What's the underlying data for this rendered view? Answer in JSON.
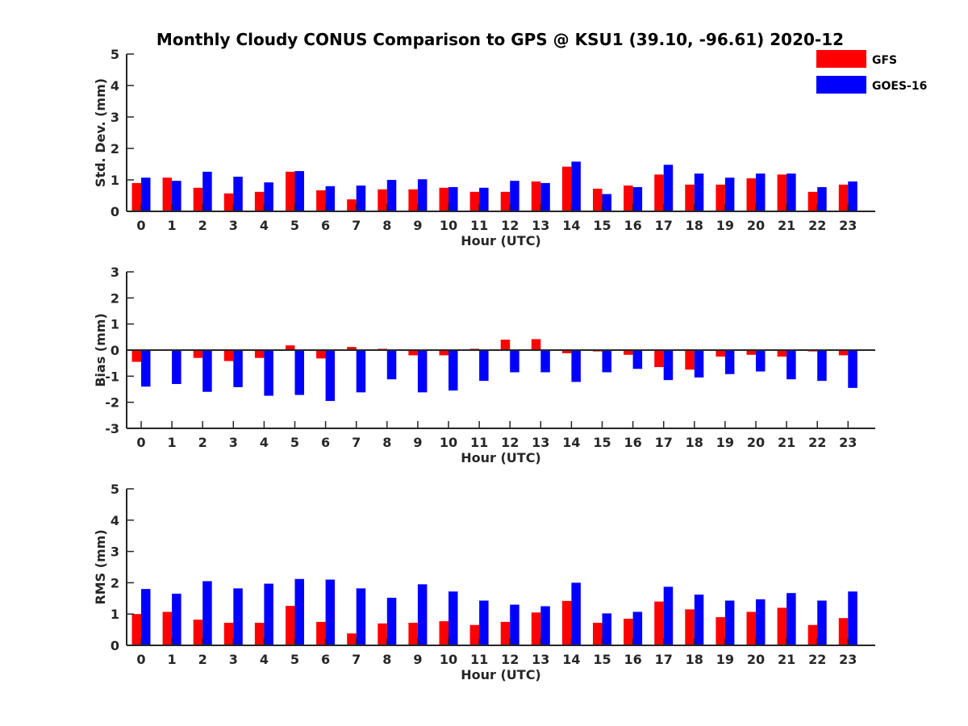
{
  "chart_data": {
    "type": "bar",
    "title": "Monthly Cloudy CONUS Comparison to GPS @ KSU1 (39.10, -96.61) 2020-12",
    "legend": {
      "placement": "top-right",
      "entries": [
        {
          "name": "GFS",
          "color": "#ff0000"
        },
        {
          "name": "GOES-16",
          "color": "#0000ff"
        }
      ]
    },
    "categories": [
      "0",
      "1",
      "2",
      "3",
      "4",
      "5",
      "6",
      "7",
      "8",
      "9",
      "10",
      "11",
      "12",
      "13",
      "14",
      "15",
      "16",
      "17",
      "18",
      "19",
      "20",
      "21",
      "22",
      "23"
    ],
    "panels": [
      {
        "id": "std",
        "ylabel": "Std. Dev. (mm)",
        "xlabel": "Hour (UTC)",
        "ylim": [
          0,
          5
        ],
        "yticks": [
          "0",
          "1",
          "2",
          "3",
          "4",
          "5"
        ],
        "zero_line": false,
        "series": [
          {
            "name": "GFS",
            "color": "#ff0000",
            "values": [
              0.9,
              1.07,
              0.75,
              0.57,
              0.62,
              1.26,
              0.67,
              0.38,
              0.7,
              0.7,
              0.75,
              0.62,
              0.62,
              0.95,
              1.42,
              0.72,
              0.82,
              1.17,
              0.85,
              0.85,
              1.05,
              1.17,
              0.62,
              0.85
            ]
          },
          {
            "name": "GOES-16",
            "color": "#0000ff",
            "values": [
              1.07,
              0.97,
              1.26,
              1.1,
              0.92,
              1.28,
              0.8,
              0.82,
              1.0,
              1.02,
              0.77,
              0.75,
              0.97,
              0.9,
              1.58,
              0.55,
              0.77,
              1.48,
              1.2,
              1.07,
              1.2,
              1.2,
              0.77,
              0.95
            ]
          }
        ]
      },
      {
        "id": "bias",
        "ylabel": "Bias (mm)",
        "xlabel": "Hour (UTC)",
        "ylim": [
          -3,
          3
        ],
        "yticks": [
          "-3",
          "-2",
          "-1",
          "0",
          "1",
          "2",
          "3"
        ],
        "zero_line": true,
        "series": [
          {
            "name": "GFS",
            "color": "#ff0000",
            "values": [
              -0.45,
              -0.02,
              -0.3,
              -0.42,
              -0.3,
              0.18,
              -0.32,
              0.12,
              0.05,
              -0.2,
              -0.2,
              0.05,
              0.4,
              0.42,
              -0.12,
              -0.05,
              -0.18,
              -0.65,
              -0.75,
              -0.25,
              -0.18,
              -0.25,
              -0.05,
              -0.2
            ]
          },
          {
            "name": "GOES-16",
            "color": "#0000ff",
            "values": [
              -1.4,
              -1.3,
              -1.6,
              -1.42,
              -1.75,
              -1.72,
              -1.95,
              -1.62,
              -1.12,
              -1.62,
              -1.55,
              -1.18,
              -0.85,
              -0.85,
              -1.22,
              -0.85,
              -0.72,
              -1.15,
              -1.05,
              -0.92,
              -0.82,
              -1.12,
              -1.18,
              -1.45
            ]
          }
        ]
      },
      {
        "id": "rms",
        "ylabel": "RMS (mm)",
        "xlabel": "Hour (UTC)",
        "ylim": [
          0,
          5
        ],
        "yticks": [
          "0",
          "1",
          "2",
          "3",
          "4",
          "5"
        ],
        "zero_line": false,
        "series": [
          {
            "name": "GFS",
            "color": "#ff0000",
            "values": [
              1.0,
              1.07,
              0.82,
              0.72,
              0.72,
              1.26,
              0.75,
              0.38,
              0.7,
              0.72,
              0.77,
              0.65,
              0.75,
              1.05,
              1.42,
              0.72,
              0.85,
              1.4,
              1.15,
              0.9,
              1.07,
              1.2,
              0.65,
              0.87
            ]
          },
          {
            "name": "GOES-16",
            "color": "#0000ff",
            "values": [
              1.8,
              1.65,
              2.05,
              1.82,
              1.97,
              2.12,
              2.1,
              1.82,
              1.52,
              1.95,
              1.72,
              1.43,
              1.3,
              1.25,
              2.0,
              1.02,
              1.07,
              1.87,
              1.62,
              1.43,
              1.47,
              1.67,
              1.43,
              1.72
            ]
          }
        ]
      }
    ]
  }
}
